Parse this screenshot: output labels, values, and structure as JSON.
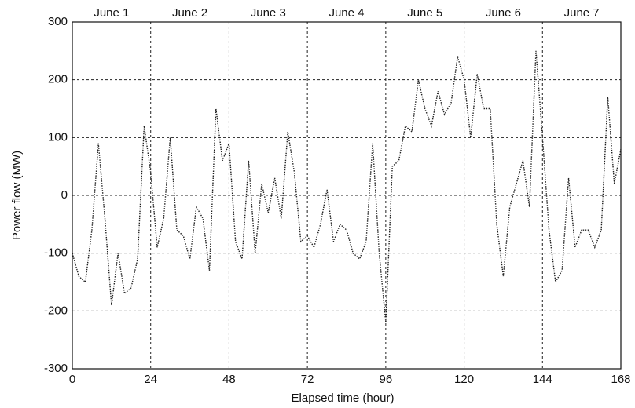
{
  "chart_data": {
    "type": "line",
    "xlabel": "Elapsed time (hour)",
    "ylabel": "Power flow (MW)",
    "annotations": [
      "June 1",
      "June 2",
      "June 3",
      "June 4",
      "June 5",
      "June 6",
      "June 7"
    ],
    "x": [
      0,
      2,
      4,
      6,
      8,
      10,
      12,
      14,
      16,
      18,
      20,
      22,
      24,
      26,
      28,
      30,
      32,
      34,
      36,
      38,
      40,
      42,
      44,
      46,
      48,
      50,
      52,
      54,
      56,
      58,
      60,
      62,
      64,
      66,
      68,
      70,
      72,
      74,
      76,
      78,
      80,
      82,
      84,
      86,
      88,
      90,
      92,
      94,
      96,
      98,
      100,
      102,
      104,
      106,
      108,
      110,
      112,
      114,
      116,
      118,
      120,
      122,
      124,
      126,
      128,
      130,
      132,
      134,
      136,
      138,
      140,
      142,
      144,
      146,
      148,
      150,
      152,
      154,
      156,
      158,
      160,
      162,
      164,
      166,
      168
    ],
    "values": [
      -100,
      -140,
      -150,
      -60,
      90,
      -40,
      -190,
      -100,
      -170,
      -160,
      -110,
      120,
      40,
      -90,
      -40,
      100,
      -60,
      -70,
      -110,
      -20,
      -40,
      -130,
      150,
      60,
      90,
      -80,
      -110,
      60,
      -100,
      20,
      -30,
      30,
      -40,
      110,
      40,
      -80,
      -70,
      -90,
      -50,
      10,
      -80,
      -50,
      -60,
      -100,
      -110,
      -80,
      90,
      -100,
      -220,
      50,
      60,
      120,
      110,
      200,
      150,
      120,
      180,
      140,
      160,
      240,
      200,
      100,
      210,
      150,
      150,
      -50,
      -140,
      -20,
      20,
      60,
      -20,
      250,
      100,
      -60,
      -150,
      -130,
      30,
      -90,
      -60,
      -60,
      -90,
      -60,
      170,
      20,
      80
    ],
    "color": "#222222",
    "xlim": [
      0,
      168
    ],
    "xticks": [
      0,
      24,
      48,
      72,
      96,
      120,
      144,
      168
    ],
    "ylim": [
      -300,
      300
    ],
    "yticks": [
      -300,
      -200,
      -100,
      0,
      100,
      200,
      300
    ],
    "grid": true
  }
}
